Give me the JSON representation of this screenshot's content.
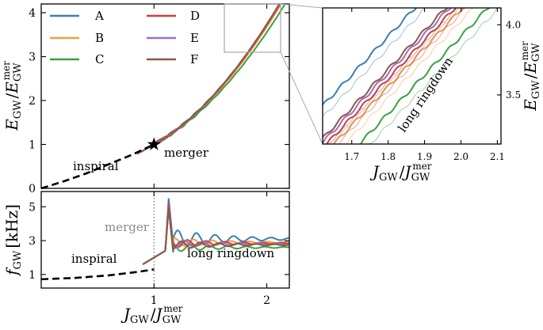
{
  "colors": {
    "A": "#3a7fb0",
    "B": "#f19d3c",
    "C": "#3aa043",
    "D": "#d43b3f",
    "E": "#9a71bd",
    "F": "#8c5848",
    "inspiral": "#000000",
    "zoom_box": "#a8a8a8"
  },
  "chart_data": [
    {
      "id": "energy",
      "type": "line",
      "ylabel_main": "E",
      "ylabel_sub": "GW",
      "ylabel_den": "E",
      "ylabel_den_sub": "GW",
      "ylabel_den_sup": "mer",
      "xlim": [
        0,
        2.2
      ],
      "ylim": [
        0,
        4.2
      ],
      "xticks": [
        "1",
        "2"
      ],
      "yticks": [
        "0",
        "1",
        "2",
        "3",
        "4"
      ],
      "series_names": [
        "A",
        "B",
        "C",
        "D",
        "E",
        "F"
      ],
      "slopes": [
        2.9,
        2.85,
        2.7,
        2.85,
        2.85,
        2.83
      ],
      "annotations": {
        "inspiral": "inspiral",
        "merger": "merger"
      },
      "merger_point": [
        1.0,
        1.0
      ],
      "inspiral_curve": [
        [
          0,
          0
        ],
        [
          0.2,
          0.16
        ],
        [
          0.4,
          0.34
        ],
        [
          0.6,
          0.55
        ],
        [
          0.8,
          0.76
        ],
        [
          1.0,
          1.0
        ]
      ]
    },
    {
      "id": "zoom",
      "type": "line",
      "xlim": [
        1.62,
        2.11
      ],
      "ylim": [
        3.15,
        4.12
      ],
      "xticks": [
        "1.7",
        "1.8",
        "1.9",
        "2.0",
        "2.1"
      ],
      "yticks": [
        "3.5",
        "4.0"
      ],
      "xlabel_main": "J",
      "xlabel_sub": "GW",
      "xlabel_den": "J",
      "xlabel_den_sub": "GW",
      "xlabel_den_sup": "mer",
      "ylabel_main": "E",
      "ylabel_sub": "GW",
      "ylabel_den": "E",
      "ylabel_den_sub": "GW",
      "ylabel_den_sup": "mer",
      "annotation": "long ringdown"
    },
    {
      "id": "frequency",
      "type": "line",
      "xlabel_main": "J",
      "xlabel_sub": "GW",
      "xlabel_den": "J",
      "xlabel_den_sub": "GW",
      "xlabel_den_sup": "mer",
      "ylabel_main": "f",
      "ylabel_sub": "GW",
      "ylabel_unit": "[kHz]",
      "xlim": [
        0,
        2.2
      ],
      "ylim": [
        0.2,
        5.9
      ],
      "xticks": [
        "1",
        "2"
      ],
      "yticks": [
        "1",
        "3",
        "5"
      ],
      "annotations": {
        "inspiral": "inspiral",
        "merger": "merger",
        "ringdown": "long ringdown"
      },
      "peaks": [
        5.5,
        5.1,
        4.9,
        5.2,
        5.0,
        4.95
      ],
      "post_merger": [
        3.1,
        2.9,
        2.6,
        2.85,
        2.8,
        2.75
      ],
      "inspiral_curve": [
        [
          0,
          0.72
        ],
        [
          0.3,
          0.8
        ],
        [
          0.6,
          0.95
        ],
        [
          0.85,
          1.15
        ],
        [
          1.0,
          1.3
        ]
      ]
    }
  ],
  "legend": [
    "A",
    "B",
    "C",
    "D",
    "E",
    "F"
  ]
}
